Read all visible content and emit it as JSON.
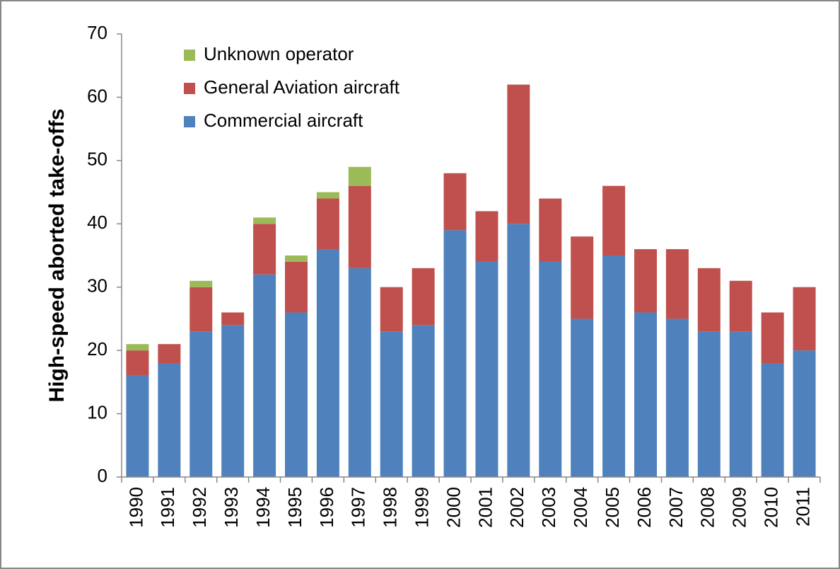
{
  "chart_data": {
    "type": "stacked-bar",
    "y_label": "High-speed aborted take-offs",
    "categories": [
      "1990",
      "1991",
      "1992",
      "1993",
      "1994",
      "1995",
      "1996",
      "1997",
      "1998",
      "1999",
      "2000",
      "2001",
      "2002",
      "2003",
      "2004",
      "2005",
      "2006",
      "2007",
      "2008",
      "2009",
      "2010",
      "2011"
    ],
    "series": [
      {
        "name": "Commercial aircraft",
        "color": "#4f81bd",
        "values": [
          16,
          18,
          23,
          24,
          32,
          26,
          36,
          33,
          23,
          24,
          39,
          34,
          40,
          34,
          25,
          35,
          26,
          25,
          23,
          23,
          18,
          20
        ]
      },
      {
        "name": "General Aviation aircraft",
        "color": "#c0504d",
        "values": [
          4,
          3,
          7,
          2,
          8,
          8,
          8,
          13,
          7,
          9,
          9,
          8,
          22,
          10,
          13,
          11,
          10,
          11,
          10,
          8,
          8,
          10
        ]
      },
      {
        "name": "Unknown operator",
        "color": "#9bbb59",
        "values": [
          1,
          0,
          1,
          0,
          1,
          1,
          1,
          3,
          0,
          0,
          0,
          0,
          0,
          0,
          0,
          0,
          0,
          0,
          0,
          0,
          0,
          0
        ]
      }
    ],
    "ylim": [
      0,
      70
    ],
    "yticks": [
      0,
      10,
      20,
      30,
      40,
      50,
      60,
      70
    ],
    "grid": false,
    "legend": "upper left"
  }
}
